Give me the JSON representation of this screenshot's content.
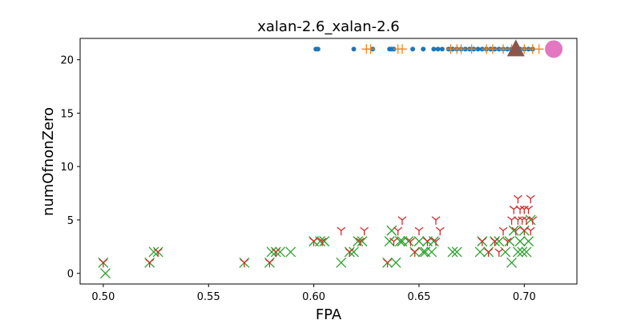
{
  "chart_data": {
    "type": "scatter",
    "title": "xalan-2.6_xalan-2.6",
    "xlabel": "FPA",
    "ylabel": "numOfnonZero",
    "xlim": [
      0.489,
      0.725
    ],
    "ylim": [
      -1.0,
      22.0
    ],
    "xticks": [
      "0.50",
      "0.55",
      "0.60",
      "0.65",
      "0.70"
    ],
    "xtick_values": [
      0.5,
      0.55,
      0.6,
      0.65,
      0.7
    ],
    "yticks": [
      "0",
      "5",
      "10",
      "15",
      "20"
    ],
    "ytick_values": [
      0,
      5,
      10,
      15,
      20
    ],
    "grid": false,
    "legend": "none",
    "series": [
      {
        "marker": "dot",
        "color": "#1f77b4",
        "points": [
          [
            0.601,
            21
          ],
          [
            0.602,
            21
          ],
          [
            0.619,
            21
          ],
          [
            0.628,
            21
          ],
          [
            0.636,
            21
          ],
          [
            0.637,
            21
          ],
          [
            0.638,
            21
          ],
          [
            0.647,
            21
          ],
          [
            0.652,
            21
          ],
          [
            0.657,
            21
          ],
          [
            0.659,
            21
          ],
          [
            0.661,
            21
          ],
          [
            0.664,
            21
          ],
          [
            0.666,
            21
          ],
          [
            0.668,
            21
          ],
          [
            0.67,
            21
          ],
          [
            0.672,
            21
          ],
          [
            0.674,
            21
          ],
          [
            0.676,
            21
          ],
          [
            0.678,
            21
          ],
          [
            0.68,
            21
          ],
          [
            0.682,
            21
          ],
          [
            0.684,
            21
          ],
          [
            0.686,
            21
          ],
          [
            0.688,
            21
          ],
          [
            0.69,
            21
          ],
          [
            0.692,
            21
          ],
          [
            0.694,
            21
          ],
          [
            0.696,
            21
          ],
          [
            0.698,
            21
          ],
          [
            0.7,
            21
          ],
          [
            0.702,
            21
          ],
          [
            0.704,
            21
          ]
        ]
      },
      {
        "marker": "plus",
        "color": "#ff7f0e",
        "points": [
          [
            0.625,
            21
          ],
          [
            0.627,
            21
          ],
          [
            0.64,
            21
          ],
          [
            0.642,
            21
          ],
          [
            0.665,
            21
          ],
          [
            0.668,
            21
          ],
          [
            0.67,
            21
          ],
          [
            0.675,
            21
          ],
          [
            0.682,
            21
          ],
          [
            0.685,
            21
          ],
          [
            0.69,
            21
          ],
          [
            0.694,
            21
          ],
          [
            0.697,
            21
          ],
          [
            0.7,
            21
          ],
          [
            0.704,
            21
          ],
          [
            0.707,
            21
          ]
        ]
      },
      {
        "marker": "x",
        "color": "#2ca02c",
        "points": [
          [
            0.5,
            1
          ],
          [
            0.501,
            0
          ],
          [
            0.522,
            1
          ],
          [
            0.524,
            2
          ],
          [
            0.526,
            2
          ],
          [
            0.567,
            1
          ],
          [
            0.579,
            1
          ],
          [
            0.58,
            2
          ],
          [
            0.582,
            2
          ],
          [
            0.584,
            2
          ],
          [
            0.589,
            2
          ],
          [
            0.6,
            3
          ],
          [
            0.603,
            3
          ],
          [
            0.605,
            3
          ],
          [
            0.613,
            1
          ],
          [
            0.617,
            2
          ],
          [
            0.619,
            2
          ],
          [
            0.621,
            3
          ],
          [
            0.623,
            3
          ],
          [
            0.635,
            1
          ],
          [
            0.636,
            3
          ],
          [
            0.637,
            4
          ],
          [
            0.639,
            1
          ],
          [
            0.641,
            3
          ],
          [
            0.642,
            3
          ],
          [
            0.645,
            3
          ],
          [
            0.648,
            2
          ],
          [
            0.65,
            3
          ],
          [
            0.652,
            2
          ],
          [
            0.653,
            2
          ],
          [
            0.654,
            3
          ],
          [
            0.656,
            2
          ],
          [
            0.657,
            3
          ],
          [
            0.666,
            2
          ],
          [
            0.668,
            2
          ],
          [
            0.679,
            2
          ],
          [
            0.68,
            3
          ],
          [
            0.683,
            2
          ],
          [
            0.686,
            3
          ],
          [
            0.688,
            3
          ],
          [
            0.691,
            2
          ],
          [
            0.693,
            3
          ],
          [
            0.694,
            1
          ],
          [
            0.695,
            4
          ],
          [
            0.697,
            2
          ],
          [
            0.698,
            3
          ],
          [
            0.699,
            2
          ],
          [
            0.7,
            4
          ],
          [
            0.701,
            2
          ],
          [
            0.702,
            3
          ],
          [
            0.703,
            5
          ]
        ]
      },
      {
        "marker": "tri_down",
        "color": "#d62728",
        "points": [
          [
            0.5,
            1
          ],
          [
            0.522,
            1
          ],
          [
            0.526,
            2
          ],
          [
            0.567,
            1
          ],
          [
            0.579,
            1
          ],
          [
            0.582,
            2
          ],
          [
            0.6,
            3
          ],
          [
            0.604,
            3
          ],
          [
            0.613,
            4
          ],
          [
            0.617,
            2
          ],
          [
            0.622,
            3
          ],
          [
            0.624,
            4
          ],
          [
            0.635,
            1
          ],
          [
            0.638,
            3
          ],
          [
            0.64,
            4
          ],
          [
            0.642,
            5
          ],
          [
            0.646,
            3
          ],
          [
            0.648,
            2
          ],
          [
            0.65,
            4
          ],
          [
            0.654,
            3
          ],
          [
            0.658,
            3
          ],
          [
            0.658,
            5
          ],
          [
            0.66,
            4
          ],
          [
            0.68,
            3
          ],
          [
            0.683,
            2
          ],
          [
            0.686,
            3
          ],
          [
            0.688,
            2
          ],
          [
            0.69,
            4
          ],
          [
            0.692,
            3
          ],
          [
            0.694,
            5
          ],
          [
            0.695,
            6
          ],
          [
            0.696,
            4
          ],
          [
            0.697,
            5
          ],
          [
            0.697,
            7
          ],
          [
            0.698,
            6
          ],
          [
            0.699,
            5
          ],
          [
            0.7,
            4
          ],
          [
            0.7,
            6
          ],
          [
            0.701,
            5
          ],
          [
            0.702,
            6
          ],
          [
            0.703,
            7
          ],
          [
            0.704,
            5
          ],
          [
            0.703,
            4
          ]
        ]
      },
      {
        "marker": "triangle",
        "color": "#8c564b",
        "points": [
          [
            0.696,
            21
          ]
        ]
      },
      {
        "marker": "circle-large",
        "color": "#e377c2",
        "points": [
          [
            0.714,
            21
          ]
        ]
      }
    ]
  }
}
